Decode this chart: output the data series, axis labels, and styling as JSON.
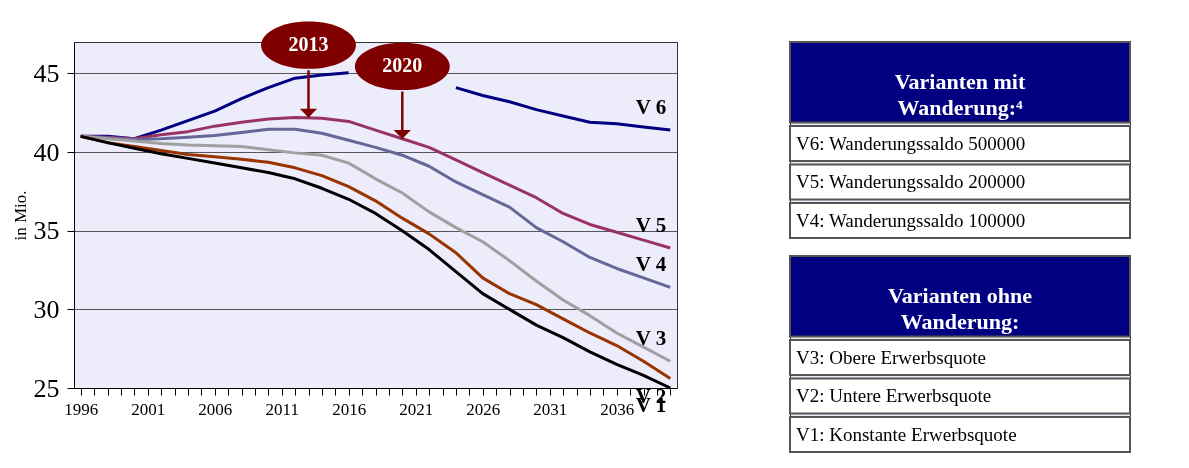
{
  "chart_data": [
    {
      "type": "line",
      "ylabel": "in Mio.",
      "x": [
        1996,
        1998,
        2000,
        2002,
        2004,
        2006,
        2008,
        2010,
        2012,
        2014,
        2016,
        2018,
        2020,
        2022,
        2024,
        2026,
        2028,
        2030,
        2032,
        2034,
        2036,
        2038,
        2040
      ],
      "xlim": [
        1995.5,
        2040.5
      ],
      "xticks": [
        1996,
        {
          "value": 1997,
          "label": null
        },
        {
          "value": 1998,
          "label": null
        },
        {
          "value": 1999,
          "label": null
        },
        {
          "value": 2000,
          "label": null
        },
        2001,
        {
          "value": 2002,
          "label": null
        },
        {
          "value": 2003,
          "label": null
        },
        {
          "value": 2004,
          "label": null
        },
        {
          "value": 2005,
          "label": null
        },
        2006,
        {
          "value": 2007,
          "label": null
        },
        {
          "value": 2008,
          "label": null
        },
        {
          "value": 2009,
          "label": null
        },
        {
          "value": 2010,
          "label": null
        },
        2011,
        {
          "value": 2012,
          "label": null
        },
        {
          "value": 2013,
          "label": null
        },
        {
          "value": 2014,
          "label": null
        },
        {
          "value": 2015,
          "label": null
        },
        2016,
        {
          "value": 2017,
          "label": null
        },
        {
          "value": 2018,
          "label": null
        },
        {
          "value": 2019,
          "label": null
        },
        {
          "value": 2020,
          "label": null
        },
        2021,
        {
          "value": 2022,
          "label": null
        },
        {
          "value": 2023,
          "label": null
        },
        {
          "value": 2024,
          "label": null
        },
        {
          "value": 2025,
          "label": null
        },
        2026,
        {
          "value": 2027,
          "label": null
        },
        {
          "value": 2028,
          "label": null
        },
        {
          "value": 2029,
          "label": null
        },
        {
          "value": 2030,
          "label": null
        },
        2031,
        {
          "value": 2032,
          "label": null
        },
        {
          "value": 2033,
          "label": null
        },
        {
          "value": 2034,
          "label": null
        },
        {
          "value": 2035,
          "label": null
        },
        2036,
        {
          "value": 2037,
          "label": null
        },
        {
          "value": 2038,
          "label": null
        },
        {
          "value": 2039,
          "label": null
        },
        {
          "value": 2040,
          "label": null
        }
      ],
      "ylim": [
        25,
        47
      ],
      "yticks": [
        25,
        30,
        35,
        40,
        45
      ],
      "grid": "y",
      "legend": false,
      "marker": "none",
      "line_style": "solid",
      "series": [
        {
          "name": "V 6",
          "color": "#000080",
          "values": [
            41.0,
            41.0,
            40.85,
            41.4,
            42.0,
            42.6,
            43.4,
            44.1,
            44.7,
            44.9,
            45.05,
            null,
            null,
            null,
            44.1,
            43.6,
            43.2,
            42.7,
            42.3,
            41.9,
            41.8,
            41.6,
            41.4
          ]
        },
        {
          "name": "V 5",
          "color": "#993366",
          "values": [
            41.0,
            40.95,
            40.85,
            41.1,
            41.3,
            41.65,
            41.9,
            42.1,
            42.2,
            42.15,
            41.95,
            41.4,
            40.85,
            40.3,
            39.5,
            38.7,
            37.9,
            37.1,
            36.1,
            35.4,
            34.9,
            34.4,
            33.9
          ]
        },
        {
          "name": "V 4",
          "color": "#666699",
          "values": [
            41.0,
            40.9,
            40.8,
            40.85,
            40.95,
            41.05,
            41.25,
            41.45,
            41.45,
            41.2,
            40.75,
            40.3,
            39.8,
            39.1,
            38.1,
            37.3,
            36.5,
            35.2,
            34.3,
            33.3,
            32.6,
            32.0,
            31.4
          ]
        },
        {
          "name": "V 3",
          "color": "#a0a0a0",
          "values": [
            41.0,
            40.85,
            40.7,
            40.55,
            40.45,
            40.4,
            40.35,
            40.15,
            39.95,
            39.8,
            39.3,
            38.3,
            37.4,
            36.2,
            35.2,
            34.3,
            33.1,
            31.8,
            30.6,
            29.6,
            28.5,
            27.6,
            26.7
          ]
        },
        {
          "name": "V 2",
          "color": "#993300",
          "values": [
            41.0,
            40.6,
            40.35,
            40.1,
            39.85,
            39.7,
            39.55,
            39.35,
            39.0,
            38.5,
            37.8,
            36.9,
            35.8,
            34.8,
            33.6,
            32.0,
            31.0,
            30.3,
            29.4,
            28.5,
            27.7,
            26.7,
            25.6
          ]
        },
        {
          "name": "V 1",
          "color": "#000000",
          "values": [
            41.0,
            40.6,
            40.25,
            39.9,
            39.6,
            39.3,
            39.0,
            38.7,
            38.3,
            37.7,
            37.0,
            36.1,
            35.0,
            33.8,
            32.4,
            31.0,
            30.0,
            29.0,
            28.2,
            27.3,
            26.5,
            25.8,
            25.0
          ]
        }
      ],
      "annotations": [
        {
          "text": "2013",
          "x": 2013,
          "y": 42.2
        },
        {
          "text": "2020",
          "x": 2020,
          "y": 40.85
        }
      ]
    },
    {
      "type": "other",
      "title": "Varianten mit\nWanderung:⁴",
      "annotations": [
        "V6: Wanderungssaldo 500000",
        "V5: Wanderungssaldo 200000",
        "V4: Wanderungssaldo 100000"
      ]
    },
    {
      "type": "other",
      "title": "Varianten ohne\nWanderung:",
      "annotations": [
        "V3: Obere Erwerbsquote",
        "V2: Untere Erwerbsquote",
        "V1: Konstante Erwerbsquote"
      ]
    }
  ]
}
